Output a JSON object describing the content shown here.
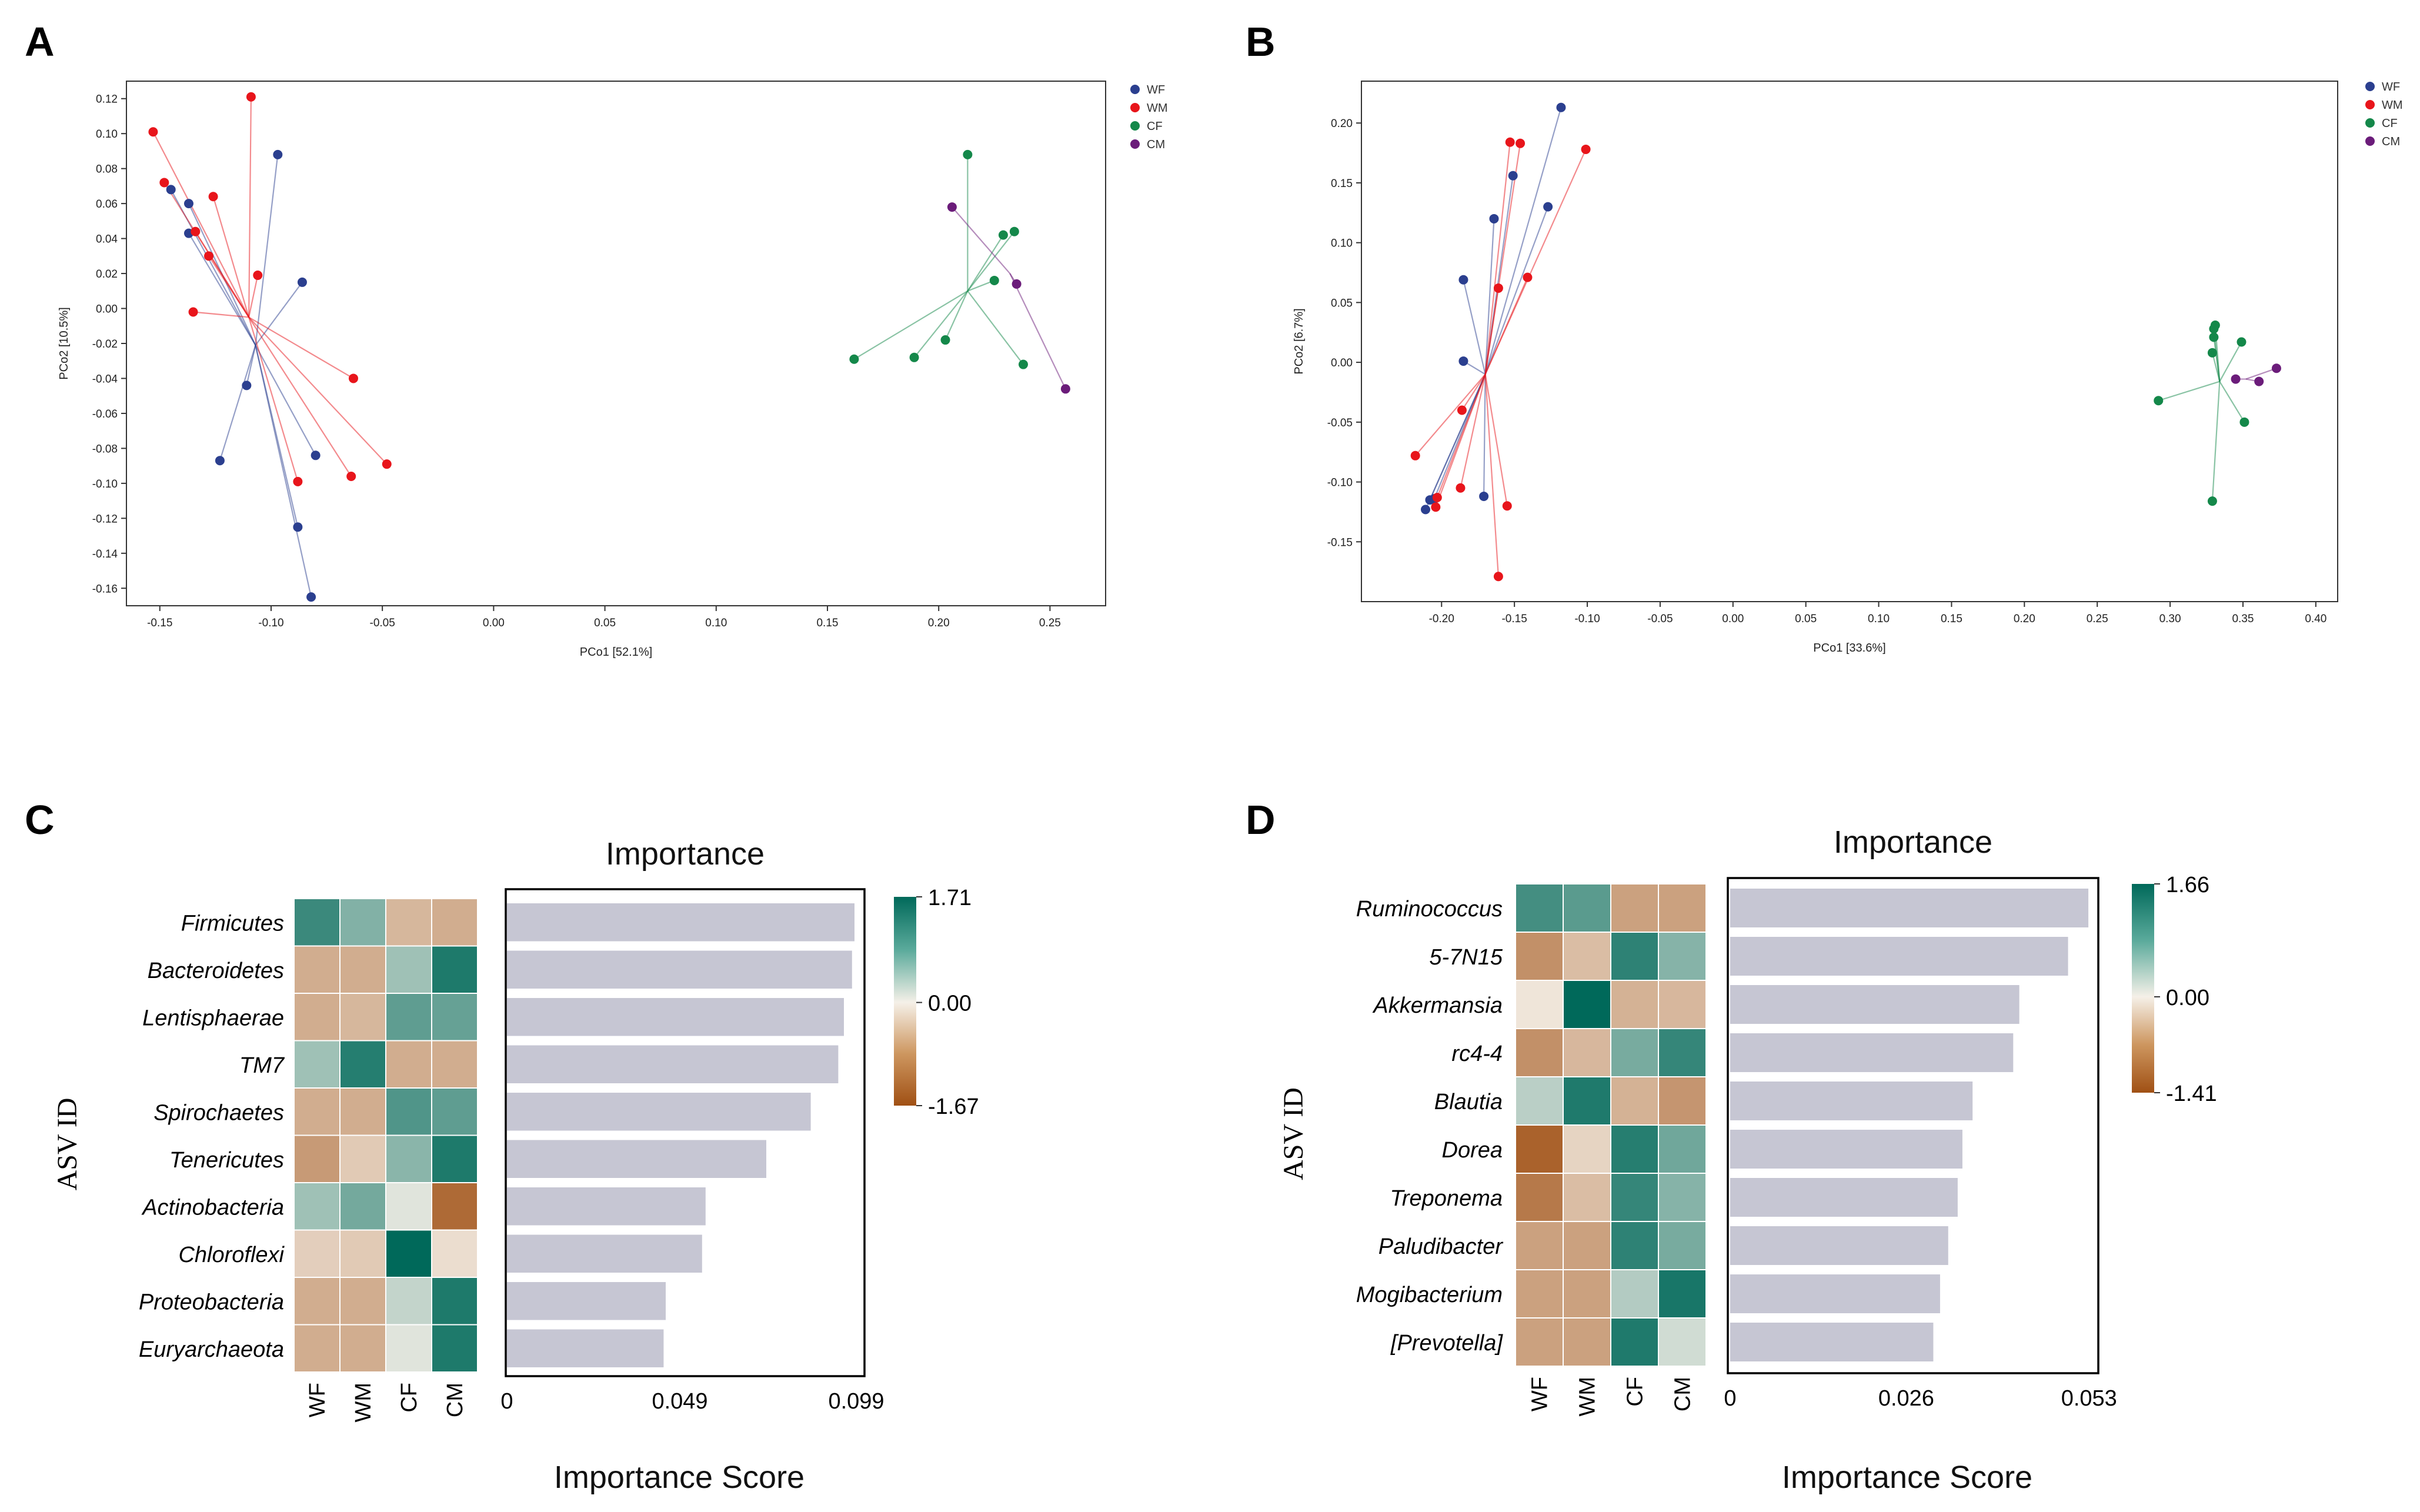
{
  "chart_data": [
    {
      "panel": "A",
      "type": "scatter",
      "xlabel": "PCo1 [52.1%]",
      "ylabel": "PCo2 [10.5%]",
      "xlim": [
        -0.165,
        0.275
      ],
      "ylim": [
        -0.17,
        0.13
      ],
      "xticks": [
        -0.15,
        -0.1,
        -0.05,
        0.0,
        0.05,
        0.1,
        0.15,
        0.2,
        0.25
      ],
      "xtick_labels": [
        "-0.15",
        "-0.10",
        "-0.05",
        "0.00",
        "0.05",
        "0.10",
        "0.15",
        "0.20",
        "0.25"
      ],
      "yticks": [
        0.12,
        0.1,
        0.08,
        0.06,
        0.04,
        0.02,
        0.0,
        -0.02,
        -0.04,
        -0.06,
        -0.08,
        -0.1,
        -0.12,
        -0.14,
        -0.16
      ],
      "ytick_labels": [
        "0.12",
        "0.10",
        "0.08",
        "0.06",
        "0.04",
        "0.02",
        "0.00",
        "-0.02",
        "-0.04",
        "-0.06",
        "-0.08",
        "-0.10",
        "-0.12",
        "-0.14",
        "-0.16"
      ],
      "legend_position": "top-right, outside",
      "series": [
        {
          "name": "WF",
          "color": "#2b3f8f",
          "centroid": [
            -0.107,
            -0.021
          ],
          "points": [
            [
              -0.145,
              0.068
            ],
            [
              -0.137,
              0.06
            ],
            [
              -0.137,
              0.043
            ],
            [
              -0.097,
              0.088
            ],
            [
              -0.086,
              0.015
            ],
            [
              -0.111,
              -0.044
            ],
            [
              -0.123,
              -0.087
            ],
            [
              -0.08,
              -0.084
            ],
            [
              -0.088,
              -0.125
            ],
            [
              -0.082,
              -0.165
            ]
          ]
        },
        {
          "name": "WM",
          "color": "#e8151b",
          "centroid": [
            -0.11,
            -0.005
          ],
          "points": [
            [
              -0.109,
              0.121
            ],
            [
              -0.153,
              0.101
            ],
            [
              -0.148,
              0.072
            ],
            [
              -0.126,
              0.064
            ],
            [
              -0.134,
              0.044
            ],
            [
              -0.128,
              0.03
            ],
            [
              -0.106,
              0.019
            ],
            [
              -0.135,
              -0.002
            ],
            [
              -0.063,
              -0.04
            ],
            [
              -0.048,
              -0.089
            ],
            [
              -0.064,
              -0.096
            ],
            [
              -0.088,
              -0.099
            ]
          ]
        },
        {
          "name": "CF",
          "color": "#14884a",
          "centroid": [
            0.213,
            0.01
          ],
          "points": [
            [
              0.213,
              0.088
            ],
            [
              0.229,
              0.042
            ],
            [
              0.234,
              0.044
            ],
            [
              0.225,
              0.016
            ],
            [
              0.203,
              -0.018
            ],
            [
              0.189,
              -0.028
            ],
            [
              0.162,
              -0.029
            ],
            [
              0.238,
              -0.032
            ]
          ]
        },
        {
          "name": "CM",
          "color": "#6b1c7a",
          "centroid": [
            0.232,
            0.02
          ],
          "points": [
            [
              0.206,
              0.058
            ],
            [
              0.235,
              0.014
            ],
            [
              0.257,
              -0.046
            ]
          ]
        }
      ]
    },
    {
      "panel": "B",
      "type": "scatter",
      "xlabel": "PCo1 [33.6%]",
      "ylabel": "PCo2 [6.7%]",
      "xlim": [
        -0.255,
        0.415
      ],
      "ylim": [
        -0.2,
        0.235
      ],
      "xticks": [
        -0.2,
        -0.15,
        -0.1,
        -0.05,
        0.0,
        0.05,
        0.1,
        0.15,
        0.2,
        0.25,
        0.3,
        0.35,
        0.4
      ],
      "xtick_labels": [
        "-0.20",
        "-0.15",
        "-0.10",
        "-0.05",
        "0.00",
        "0.05",
        "0.10",
        "0.15",
        "0.20",
        "0.25",
        "0.30",
        "0.35",
        "0.40"
      ],
      "yticks": [
        0.2,
        0.15,
        0.1,
        0.05,
        0.0,
        -0.05,
        -0.1,
        -0.15
      ],
      "ytick_labels": [
        "0.20",
        "0.15",
        "0.10",
        "0.05",
        "0.00",
        "-0.05",
        "-0.10",
        "-0.15"
      ],
      "legend_position": "top-right, outside",
      "series": [
        {
          "name": "WF",
          "color": "#2b3f8f",
          "centroid": [
            -0.17,
            -0.01
          ],
          "points": [
            [
              -0.118,
              0.213
            ],
            [
              -0.151,
              0.156
            ],
            [
              -0.127,
              0.13
            ],
            [
              -0.164,
              0.12
            ],
            [
              -0.185,
              0.069
            ],
            [
              -0.185,
              0.001
            ],
            [
              -0.171,
              -0.112
            ],
            [
              -0.205,
              -0.114
            ],
            [
              -0.208,
              -0.115
            ],
            [
              -0.211,
              -0.123
            ]
          ]
        },
        {
          "name": "WM",
          "color": "#e8151b",
          "centroid": [
            -0.17,
            -0.01
          ],
          "points": [
            [
              -0.153,
              0.184
            ],
            [
              -0.146,
              0.183
            ],
            [
              -0.101,
              0.178
            ],
            [
              -0.141,
              0.071
            ],
            [
              -0.161,
              0.062
            ],
            [
              -0.186,
              -0.04
            ],
            [
              -0.218,
              -0.078
            ],
            [
              -0.187,
              -0.105
            ],
            [
              -0.203,
              -0.113
            ],
            [
              -0.204,
              -0.121
            ],
            [
              -0.155,
              -0.12
            ],
            [
              -0.161,
              -0.179
            ]
          ]
        },
        {
          "name": "CF",
          "color": "#14884a",
          "centroid": [
            0.334,
            -0.016
          ],
          "points": [
            [
              0.331,
              0.031
            ],
            [
              0.33,
              0.028
            ],
            [
              0.33,
              0.021
            ],
            [
              0.349,
              0.017
            ],
            [
              0.329,
              0.008
            ],
            [
              0.292,
              -0.032
            ],
            [
              0.351,
              -0.05
            ],
            [
              0.329,
              -0.116
            ]
          ]
        },
        {
          "name": "CM",
          "color": "#6b1c7a",
          "centroid": [
            0.352,
            -0.014
          ],
          "points": [
            [
              0.373,
              -0.005
            ],
            [
              0.345,
              -0.014
            ],
            [
              0.361,
              -0.016
            ]
          ]
        }
      ]
    },
    {
      "panel": "C",
      "type": "bar",
      "orientation": "horizontal",
      "title": "Importance",
      "xlabel": "Importance Score",
      "ylabel": "ASV ID",
      "xlim": [
        0,
        0.1
      ],
      "xticks": [
        0,
        0.049,
        0.099
      ],
      "xtick_labels": [
        "0",
        "0.049",
        "0.099"
      ],
      "categories": [
        "Firmicutes",
        "Bacteroidetes",
        "Lentisphaerae",
        "TM7",
        "Spirochaetes",
        "Tenericutes",
        "Actinobacteria",
        "Chloroflexi",
        "Proteobacteria",
        "Euryarchaeota"
      ],
      "values": [
        0.0985,
        0.0978,
        0.0955,
        0.0939,
        0.0861,
        0.0735,
        0.0563,
        0.0553,
        0.045,
        0.0444
      ],
      "bar_color": "#c6c6d3",
      "heatmap": {
        "type": "heatmap",
        "columns": [
          "WF",
          "WM",
          "CF",
          "CM"
        ],
        "colorbar_ticks": [
          1.71,
          0.0,
          -1.67
        ],
        "colorbar_tick_labels": [
          "1.71",
          "0.00",
          "-1.67"
        ],
        "vmin": -1.67,
        "vmax": 1.71,
        "values": [
          [
            1.3,
            0.8,
            -0.6,
            -0.7
          ],
          [
            -0.7,
            -0.7,
            0.6,
            1.5
          ],
          [
            -0.7,
            -0.6,
            1.05,
            1.0
          ],
          [
            0.6,
            1.45,
            -0.7,
            -0.7
          ],
          [
            -0.7,
            -0.7,
            1.15,
            1.05
          ],
          [
            -0.9,
            -0.4,
            0.75,
            1.5
          ],
          [
            0.6,
            0.9,
            0.15,
            -1.4
          ],
          [
            -0.35,
            -0.4,
            1.71,
            -0.2
          ],
          [
            -0.7,
            -0.7,
            0.35,
            1.5
          ],
          [
            -0.7,
            -0.7,
            0.15,
            1.5
          ]
        ]
      }
    },
    {
      "panel": "D",
      "type": "bar",
      "orientation": "horizontal",
      "title": "Importance",
      "xlabel": "Importance Score",
      "ylabel": "ASV ID",
      "xlim": [
        0,
        0.0535
      ],
      "xticks": [
        0,
        0.026,
        0.053
      ],
      "xtick_labels": [
        "0",
        "0.026",
        "0.053"
      ],
      "categories": [
        "Ruminococcus",
        "5-7N15",
        "Akkermansia",
        "rc4-4",
        "Blautia",
        "Dorea",
        "Treponema",
        "Paludibacter",
        "Mogibacterium",
        "[Prevotella]"
      ],
      "values": [
        0.0529,
        0.0499,
        0.0427,
        0.0418,
        0.0358,
        0.0343,
        0.0336,
        0.0322,
        0.031,
        0.03
      ],
      "bar_color": "#c6c6d3",
      "heatmap": {
        "type": "heatmap",
        "columns": [
          "WF",
          "WM",
          "CF",
          "CM"
        ],
        "colorbar_ticks": [
          1.66,
          0.0,
          -1.41
        ],
        "colorbar_tick_labels": [
          "1.66",
          "0.00",
          "-1.41"
        ],
        "vmin": -1.41,
        "vmax": 1.66,
        "values": [
          [
            1.2,
            1.05,
            -0.7,
            -0.7
          ],
          [
            -0.85,
            -0.45,
            1.35,
            0.75
          ],
          [
            -0.1,
            1.66,
            -0.55,
            -0.5
          ],
          [
            -0.85,
            -0.5,
            0.85,
            1.3
          ],
          [
            0.4,
            1.45,
            -0.55,
            -0.8
          ],
          [
            -1.25,
            -0.25,
            1.4,
            0.9
          ],
          [
            -1.05,
            -0.45,
            1.3,
            0.75
          ],
          [
            -0.7,
            -0.7,
            1.35,
            0.85
          ],
          [
            -0.7,
            -0.7,
            0.45,
            1.5
          ],
          [
            -0.7,
            -0.7,
            1.45,
            0.25
          ]
        ]
      }
    }
  ],
  "panel_labels": {
    "A": "A",
    "B": "B",
    "C": "C",
    "D": "D"
  },
  "legend_labels": [
    "WF",
    "WM",
    "CF",
    "CM"
  ]
}
